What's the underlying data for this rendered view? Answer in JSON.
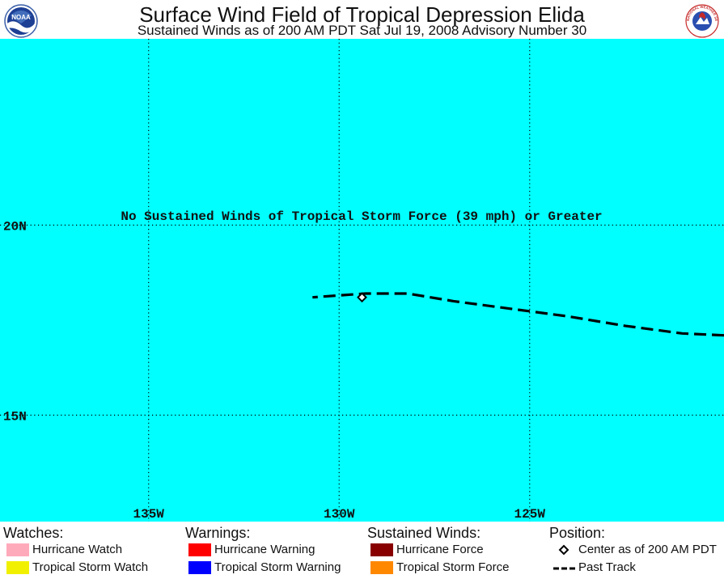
{
  "header": {
    "title": "Surface Wind Field of Tropical Depression Elida",
    "subtitle": "Sustained Winds as of 200 AM PDT Sat Jul 19, 2008    Advisory Number 30",
    "left_logo_text": "NOAA",
    "right_logo_text": "NATIONAL WEATHER SERVICE"
  },
  "map": {
    "background_color": "#00ffff",
    "lon_range": [
      -138.9,
      -119.9
    ],
    "lat_range": [
      12.2,
      24.9
    ],
    "lat_lines": [
      {
        "value": 20,
        "label": "20N"
      },
      {
        "value": 15,
        "label": "15N"
      }
    ],
    "lon_lines": [
      {
        "value": -135,
        "label": "135W"
      },
      {
        "value": -130,
        "label": "130W"
      },
      {
        "value": -125,
        "label": "125W"
      }
    ],
    "note": "No Sustained Winds of Tropical Storm Force (39 mph) or Greater",
    "center": {
      "lon": -129.4,
      "lat": 18.1
    },
    "past_track": [
      {
        "lon": -119.9,
        "lat": 17.1
      },
      {
        "lon": -121.0,
        "lat": 17.15
      },
      {
        "lon": -122.5,
        "lat": 17.35
      },
      {
        "lon": -124.0,
        "lat": 17.6
      },
      {
        "lon": -125.5,
        "lat": 17.8
      },
      {
        "lon": -127.0,
        "lat": 18.0
      },
      {
        "lon": -128.2,
        "lat": 18.2
      },
      {
        "lon": -129.3,
        "lat": 18.2
      },
      {
        "lon": -130.0,
        "lat": 18.15
      },
      {
        "lon": -130.7,
        "lat": 18.1
      }
    ]
  },
  "legend": {
    "watches": {
      "heading": "Watches:",
      "items": [
        {
          "label": "Hurricane Watch",
          "color": "#ffaabb"
        },
        {
          "label": "Tropical Storm Watch",
          "color": "#f0f000"
        }
      ]
    },
    "warnings": {
      "heading": "Warnings:",
      "items": [
        {
          "label": "Hurricane Warning",
          "color": "#ff0000"
        },
        {
          "label": "Tropical Storm Warning",
          "color": "#0000ff"
        }
      ]
    },
    "sustained_winds": {
      "heading": "Sustained Winds:",
      "items": [
        {
          "label": "Hurricane Force",
          "color": "#880000"
        },
        {
          "label": "Tropical Storm Force",
          "color": "#ff8800"
        }
      ]
    },
    "position": {
      "heading": "Position:",
      "items": [
        {
          "label": "Center as of 200 AM PDT",
          "icon": "diamond-icon"
        },
        {
          "label": "Past Track",
          "icon": "dashed-line-icon"
        }
      ]
    }
  }
}
